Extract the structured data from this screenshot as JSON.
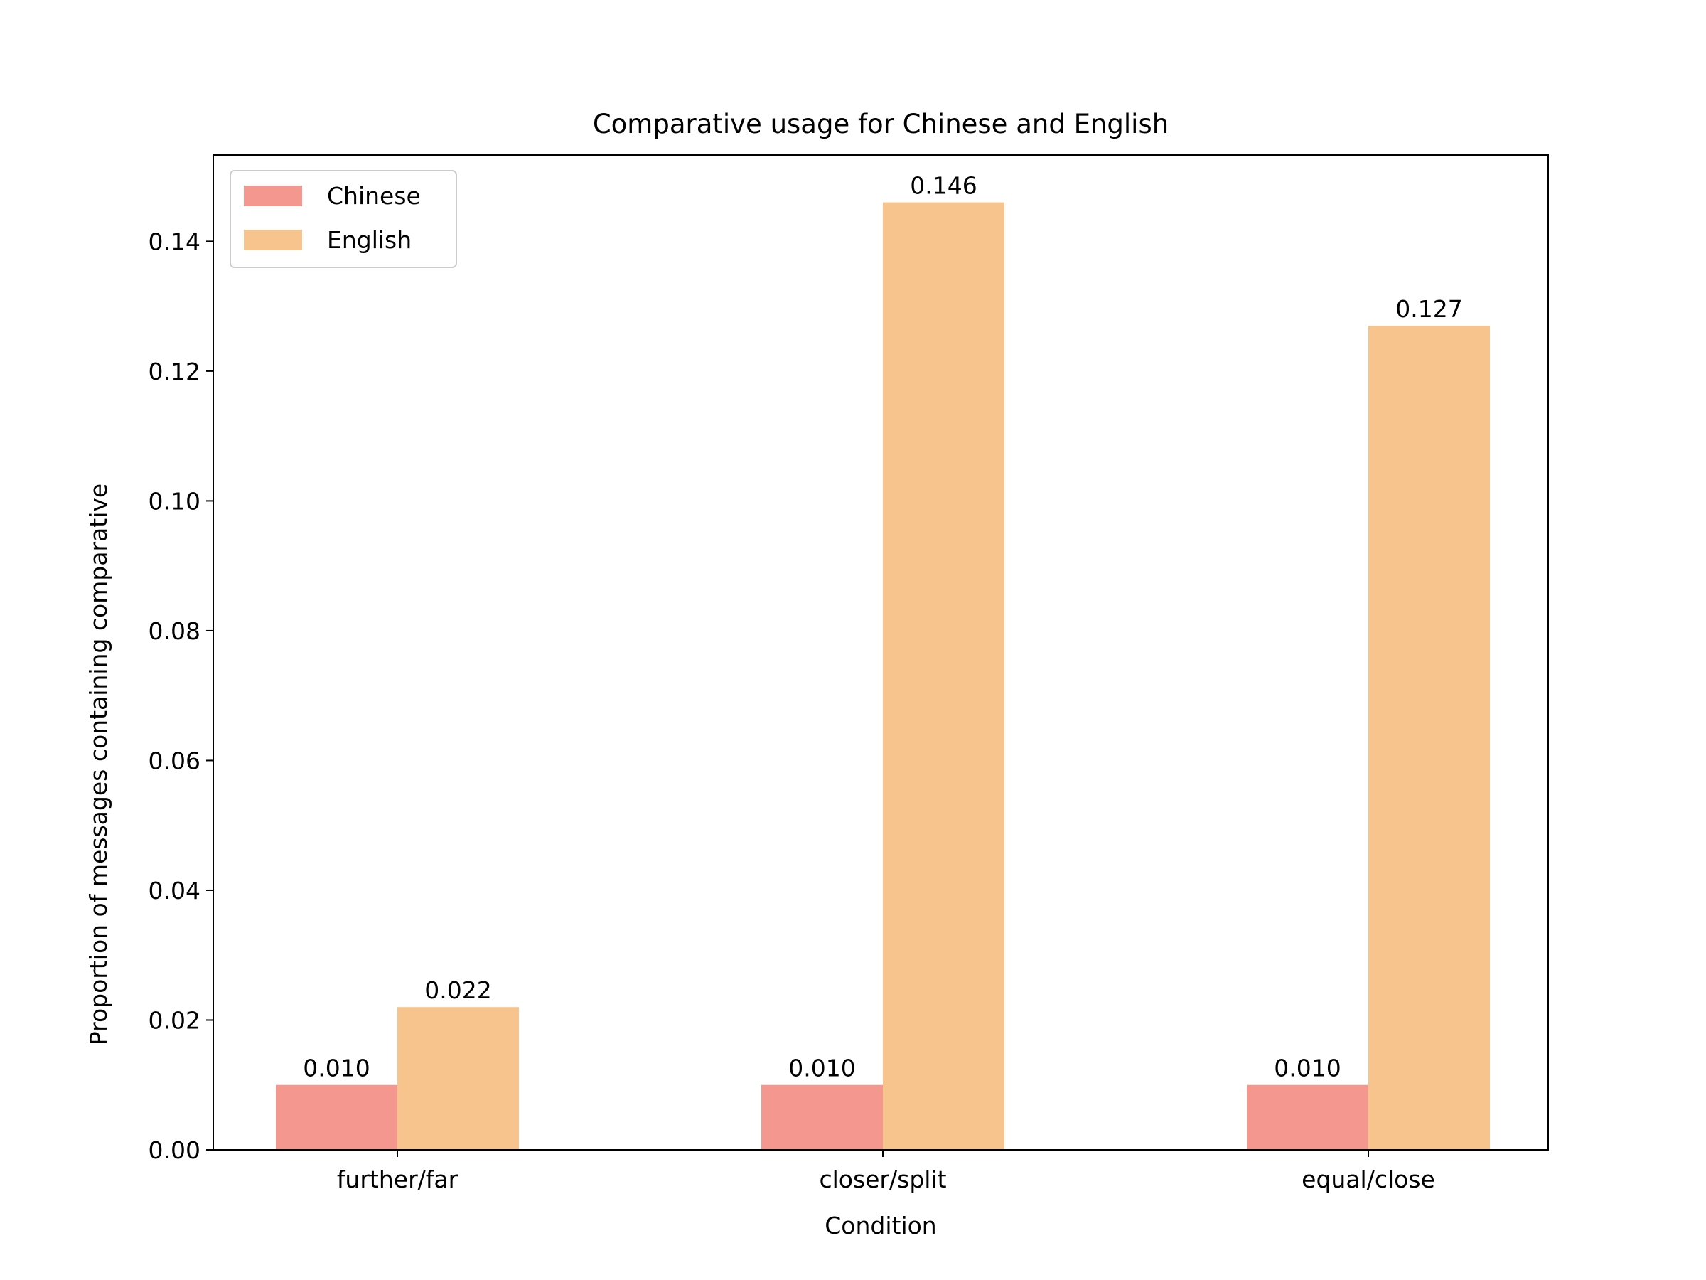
{
  "chart_data": {
    "type": "bar",
    "title": "Comparative usage for Chinese and English",
    "xlabel": "Condition",
    "ylabel": "Proportion of messages containing comparative",
    "categories": [
      "further/far",
      "closer/split",
      "equal/close"
    ],
    "series": [
      {
        "name": "Chinese",
        "color": "#f4978e",
        "values": [
          0.01,
          0.01,
          0.01
        ],
        "labels": [
          "0.010",
          "0.010",
          "0.010"
        ]
      },
      {
        "name": "English",
        "color": "#f8c48d",
        "values": [
          0.022,
          0.146,
          0.127
        ],
        "labels": [
          "0.022",
          "0.146",
          "0.127"
        ]
      }
    ],
    "ylim": [
      0,
      0.1533
    ],
    "yticks": [
      0.0,
      0.02,
      0.04,
      0.06,
      0.08,
      0.1,
      0.12,
      0.14
    ],
    "ytick_labels": [
      "0.00",
      "0.02",
      "0.04",
      "0.06",
      "0.08",
      "0.10",
      "0.12",
      "0.14"
    ],
    "grid": false,
    "legend_position": "top-left"
  }
}
